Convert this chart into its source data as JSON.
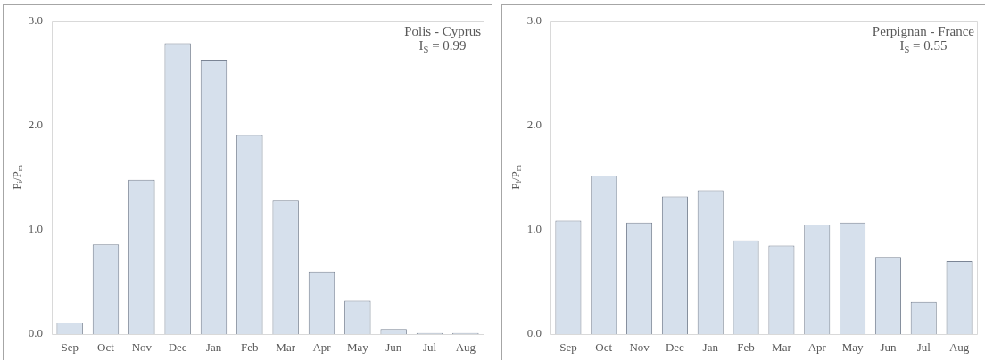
{
  "chart_data": [
    {
      "type": "bar",
      "categories": [
        "Sep",
        "Oct",
        "Nov",
        "Dec",
        "Jan",
        "Feb",
        "Mar",
        "Apr",
        "May",
        "Jun",
        "Jul",
        "Aug"
      ],
      "values": [
        0.11,
        0.86,
        1.48,
        2.79,
        2.63,
        1.91,
        1.28,
        0.6,
        0.32,
        0.05,
        0.01,
        0.01
      ],
      "color": "#d6e0ec",
      "ylabel": "P$_{i}$/P$_{m}$",
      "ylim": [
        0,
        3
      ],
      "yticks": [
        {
          "value": 0,
          "label": "0.0"
        },
        {
          "value": 1,
          "label": "1.0"
        },
        {
          "value": 2,
          "label": "2.0"
        },
        {
          "value": 3,
          "label": "3.0"
        }
      ],
      "annotations": [
        "Polis - Cyprus",
        "I$_{S}$ = 0.99"
      ]
    },
    {
      "type": "bar",
      "categories": [
        "Sep",
        "Oct",
        "Nov",
        "Dec",
        "Jan",
        "Feb",
        "Mar",
        "Apr",
        "May",
        "Jun",
        "Jul",
        "Aug"
      ],
      "values": [
        1.09,
        1.52,
        1.07,
        1.32,
        1.38,
        0.9,
        0.85,
        1.05,
        1.07,
        0.74,
        0.31,
        0.7
      ],
      "color": "#d6e0ec",
      "ylabel": "P$_{i}$/P$_{m}$",
      "ylim": [
        0,
        3
      ],
      "yticks": [
        {
          "value": 0,
          "label": "0.0"
        },
        {
          "value": 1,
          "label": "1.0"
        },
        {
          "value": 2,
          "label": "2.0"
        },
        {
          "value": 3,
          "label": "3.0"
        }
      ],
      "annotations": [
        "Perpignan - France",
        "I$_{S}$ = 0.55"
      ]
    }
  ]
}
